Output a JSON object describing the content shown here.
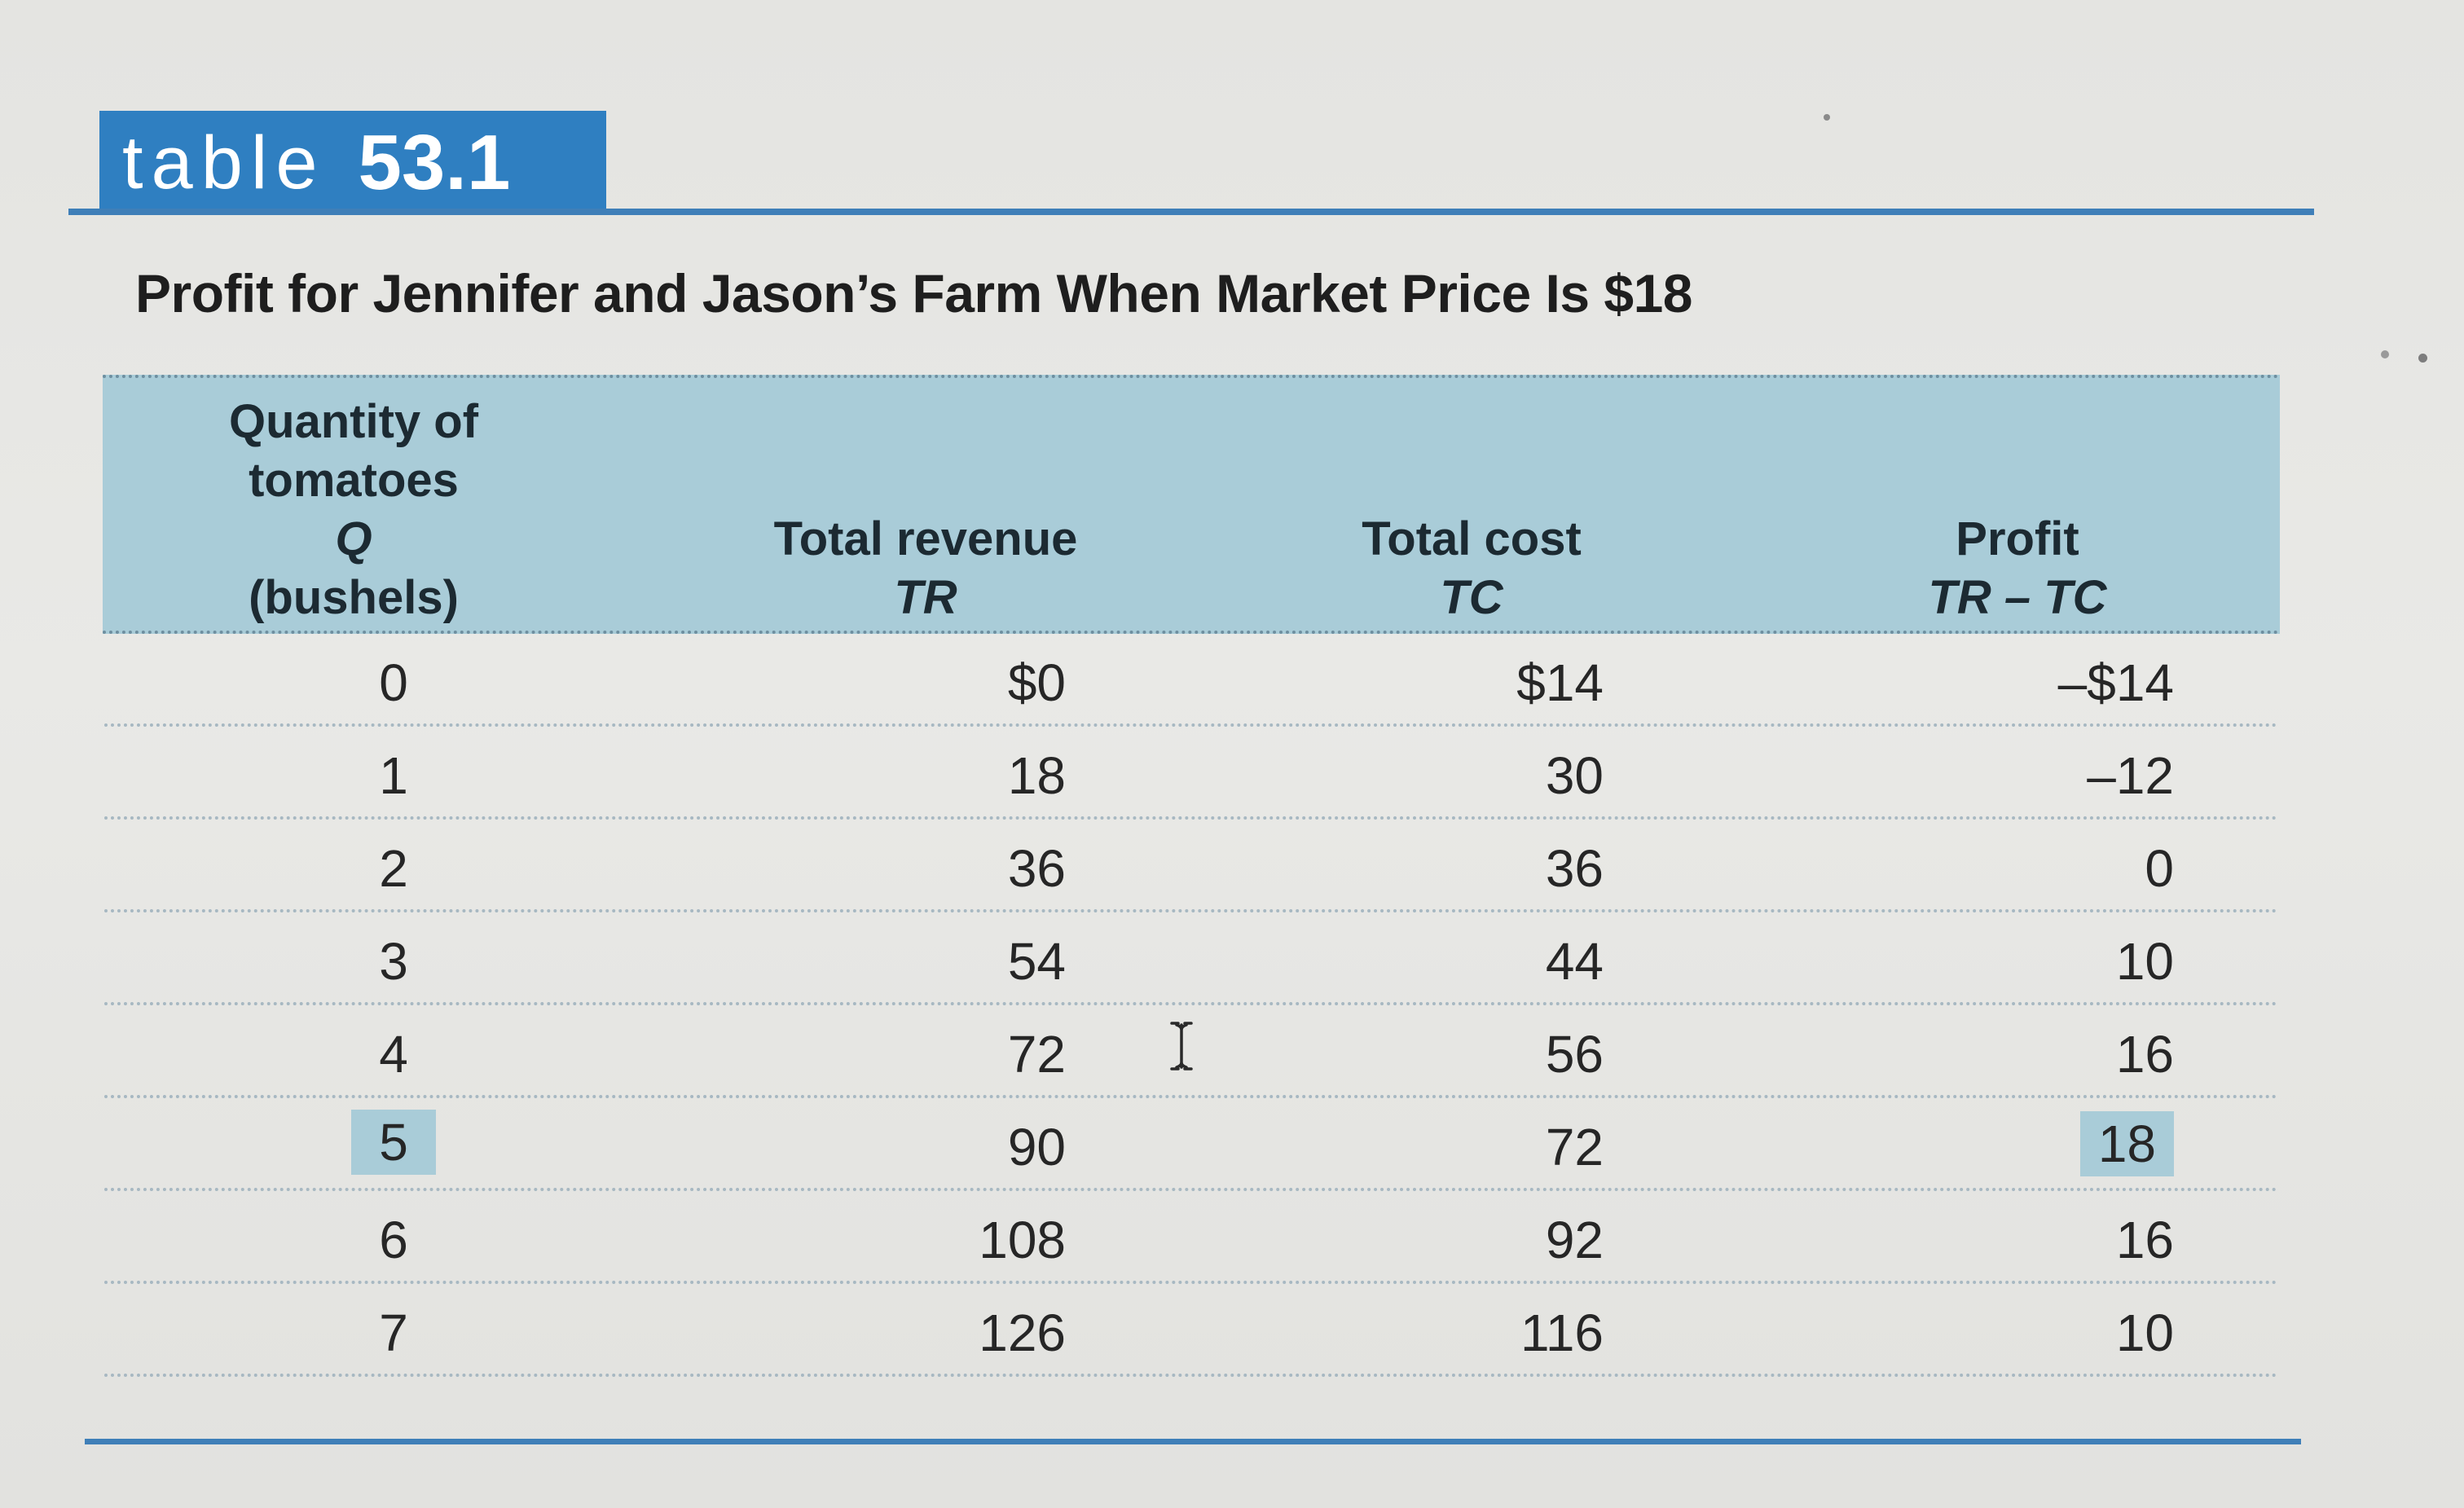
{
  "table_tag": {
    "word": "table",
    "number": "53.1"
  },
  "title": "Profit for Jennifer and Jason’s Farm When Market Price Is $18",
  "columns": [
    {
      "line1": "Quantity of",
      "line2": "tomatoes",
      "symbol": "Q",
      "unit": "(bushels)"
    },
    {
      "label": "Total revenue",
      "symbol": "TR"
    },
    {
      "label": "Total cost",
      "symbol": "TC"
    },
    {
      "label": "Profit",
      "symbol": "TR – TC"
    }
  ],
  "rows": [
    {
      "q": "0",
      "tr": "$0",
      "tc": "$14",
      "profit": "–$14"
    },
    {
      "q": "1",
      "tr": "18",
      "tc": "30",
      "profit": "–12"
    },
    {
      "q": "2",
      "tr": "36",
      "tc": "36",
      "profit": "0"
    },
    {
      "q": "3",
      "tr": "54",
      "tc": "44",
      "profit": "10"
    },
    {
      "q": "4",
      "tr": "72",
      "tc": "56",
      "profit": "16"
    },
    {
      "q": "5",
      "tr": "90",
      "tc": "72",
      "profit": "18"
    },
    {
      "q": "6",
      "tr": "108",
      "tc": "92",
      "profit": "16"
    },
    {
      "q": "7",
      "tr": "126",
      "tc": "116",
      "profit": "10"
    }
  ],
  "highlight_row_index": 5,
  "colors": {
    "accent_blue": "#2f7fc1",
    "header_fill": "#a9ccd8",
    "rule_blue": "#3f7fb8"
  },
  "icons": {
    "cursor": "text-cursor-icon"
  }
}
